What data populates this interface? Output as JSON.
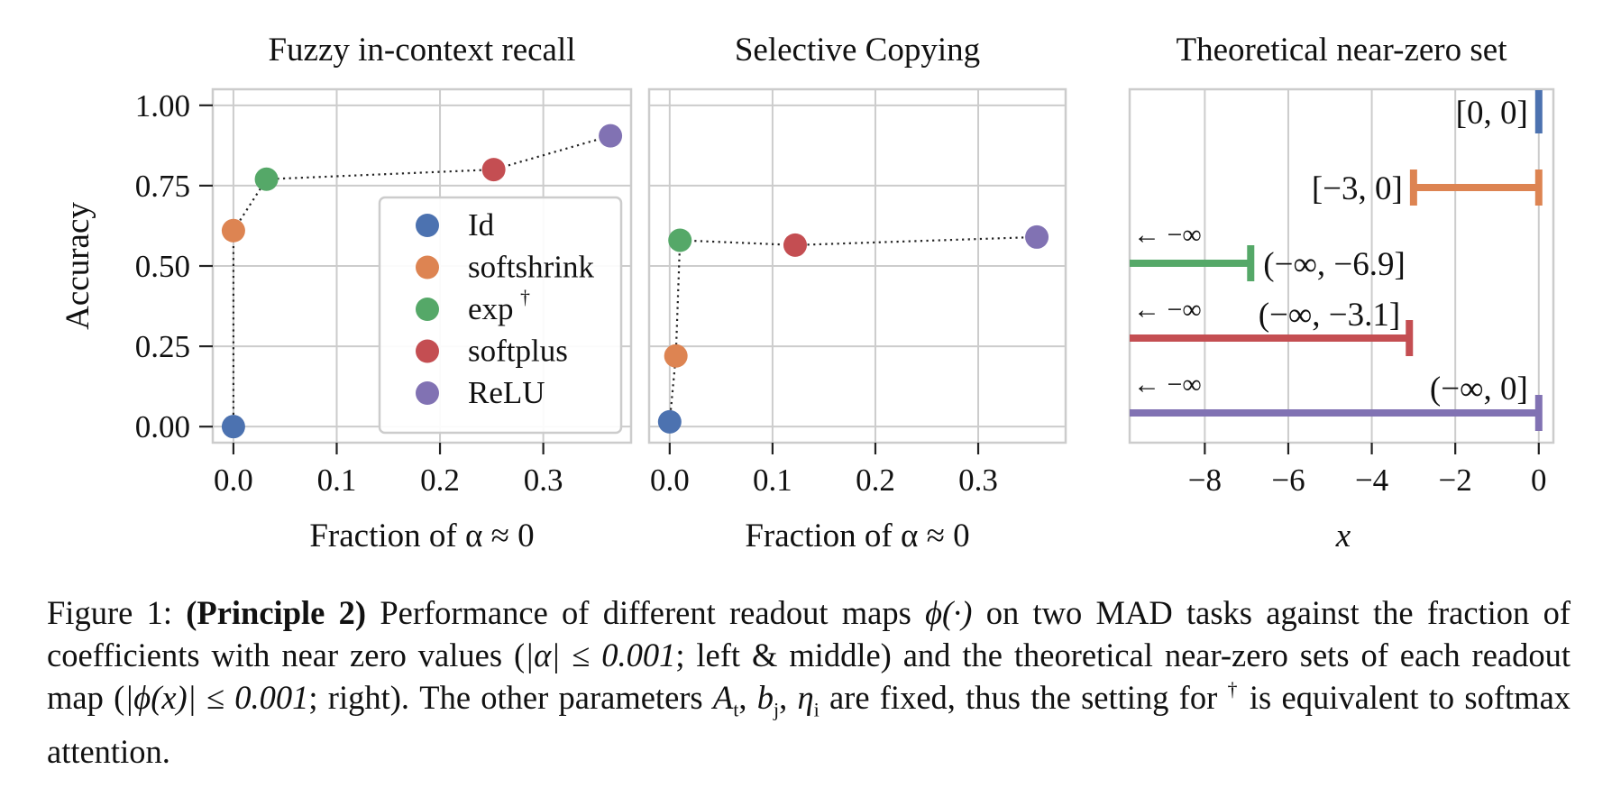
{
  "chart_data": [
    {
      "type": "scatter",
      "title": "Fuzzy in-context recall",
      "xlabel": "Fraction of α ≈ 0",
      "ylabel": "Accuracy",
      "xlim": [
        -0.02,
        0.385
      ],
      "ylim": [
        -0.05,
        1.05
      ],
      "xticks": [
        0.0,
        0.1,
        0.2,
        0.3
      ],
      "xtick_labels": [
        "0.0",
        "0.1",
        "0.2",
        "0.3"
      ],
      "yticks": [
        0.0,
        0.25,
        0.5,
        0.75,
        1.0
      ],
      "ytick_labels": [
        "0.00",
        "0.25",
        "0.50",
        "0.75",
        "1.00"
      ],
      "grid": true,
      "connector": "dotted",
      "legend_placement": "lower-right",
      "series": [
        {
          "name": "Id",
          "color": "#4c72b0",
          "x": 0.0,
          "y": 0.0
        },
        {
          "name": "softshrink",
          "color": "#dd8452",
          "x": 0.0,
          "y": 0.61
        },
        {
          "name": "exp",
          "marker": "†",
          "color": "#55a868",
          "x": 0.032,
          "y": 0.77
        },
        {
          "name": "softplus",
          "color": "#c44e52",
          "x": 0.252,
          "y": 0.8
        },
        {
          "name": "ReLU",
          "color": "#8172b3",
          "x": 0.365,
          "y": 0.905
        }
      ]
    },
    {
      "type": "scatter",
      "title": "Selective Copying",
      "xlabel": "Fraction of α ≈ 0",
      "xlim": [
        -0.02,
        0.385
      ],
      "ylim": [
        -0.05,
        1.05
      ],
      "xticks": [
        0.0,
        0.1,
        0.2,
        0.3
      ],
      "xtick_labels": [
        "0.0",
        "0.1",
        "0.2",
        "0.3"
      ],
      "grid": true,
      "connector": "dotted",
      "series": [
        {
          "name": "Id",
          "color": "#4c72b0",
          "x": 0.0,
          "y": 0.015
        },
        {
          "name": "softshrink",
          "color": "#dd8452",
          "x": 0.006,
          "y": 0.22
        },
        {
          "name": "exp",
          "color": "#55a868",
          "x": 0.01,
          "y": 0.58
        },
        {
          "name": "softplus",
          "color": "#c44e52",
          "x": 0.122,
          "y": 0.565
        },
        {
          "name": "ReLU",
          "color": "#8172b3",
          "x": 0.357,
          "y": 0.59
        }
      ]
    },
    {
      "type": "interval",
      "title": "Theoretical near-zero set",
      "xlabel": "x",
      "xlim": [
        -9.8,
        0.35
      ],
      "xticks": [
        -8,
        -6,
        -4,
        -2,
        0
      ],
      "xtick_labels": [
        "−8",
        "−6",
        "−4",
        "−2",
        "0"
      ],
      "grid": true,
      "arrow_label": "← −∞",
      "intervals": [
        {
          "name": "Id",
          "color": "#4c72b0",
          "lo": 0,
          "hi": 0,
          "label": "[0, 0]",
          "unbounded_left": false
        },
        {
          "name": "softshrink",
          "color": "#dd8452",
          "lo": -3,
          "hi": 0,
          "label": "[−3, 0]",
          "unbounded_left": false
        },
        {
          "name": "exp",
          "color": "#55a868",
          "lo": null,
          "hi": -6.9,
          "label": "(−∞, −6.9]",
          "unbounded_left": true
        },
        {
          "name": "softplus",
          "color": "#c44e52",
          "lo": null,
          "hi": -3.1,
          "label": "(−∞, −3.1]",
          "unbounded_left": true
        },
        {
          "name": "ReLU",
          "color": "#8172b3",
          "lo": null,
          "hi": 0,
          "label": "(−∞, 0]",
          "unbounded_left": true
        }
      ]
    }
  ],
  "caption": {
    "prefix": "Figure 1: ",
    "bold": "(Principle 2)",
    "part1": " Performance of different readout maps ",
    "phi_dot": "ϕ(·)",
    "part2": " on two MAD tasks against the fraction of coefficients with near zero values (",
    "cond1": "|α| ≤ 0.001",
    "part3": "; left & middle) and the theoretical near-zero sets of each readout map (",
    "cond2": "|ϕ(x)| ≤ 0.001",
    "part4": "; right). The other parameters ",
    "params": "A",
    "params_sub": "t",
    "params2": "b",
    "params2_sub": "j",
    "params3": "η",
    "params3_sub": "i",
    "part5": " are fixed, thus the setting for ",
    "dagger": "†",
    "part6": " is equivalent to softmax attention."
  }
}
